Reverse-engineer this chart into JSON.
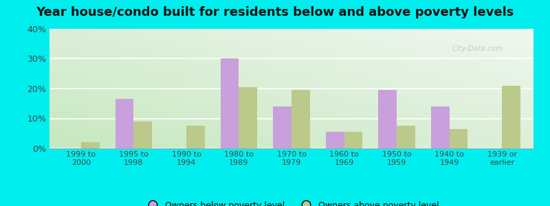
{
  "title": "Year house/condo built for residents below and above poverty levels",
  "categories": [
    "1999 to\n2000",
    "1995 to\n1998",
    "1990 to\n1994",
    "1980 to\n1989",
    "1970 to\n1979",
    "1960 to\n1969",
    "1950 to\n1959",
    "1940 to\n1949",
    "1939 or\nearlier"
  ],
  "below_poverty": [
    0,
    16.5,
    0,
    30,
    14,
    5.5,
    19.5,
    14,
    0
  ],
  "above_poverty": [
    2,
    9,
    7.5,
    20.5,
    19.5,
    5.5,
    7.5,
    6.5,
    21
  ],
  "below_color": "#c9a0dc",
  "above_color": "#bbc98a",
  "ylim": [
    0,
    40
  ],
  "yticks": [
    0,
    10,
    20,
    30,
    40
  ],
  "ytick_labels": [
    "0%",
    "10%",
    "20%",
    "30%",
    "40%"
  ],
  "outer_background": "#00eeee",
  "legend_below": "Owners below poverty level",
  "legend_above": "Owners above poverty level",
  "title_fontsize": 13,
  "bar_width": 0.35,
  "watermark": "City-Data.com"
}
